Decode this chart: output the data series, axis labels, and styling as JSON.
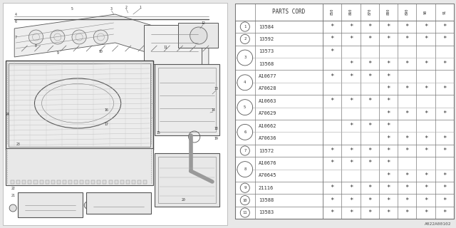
{
  "bg_color": "#e8e8e8",
  "diagram_bg": "#d8d8d8",
  "table_bg": "#ffffff",
  "header": "PARTS CORD",
  "col_headers": [
    "8\n5\n0",
    "8\n6\n0",
    "8\n7\n0",
    "8\n8\n0",
    "8\n9\n0",
    "9\n0",
    "9\n1"
  ],
  "rows": [
    {
      "num": 1,
      "parts": [
        {
          "code": "13584",
          "marks": [
            1,
            1,
            1,
            1,
            1,
            1,
            1
          ]
        }
      ]
    },
    {
      "num": 2,
      "parts": [
        {
          "code": "13592",
          "marks": [
            1,
            1,
            1,
            1,
            1,
            1,
            1
          ]
        }
      ]
    },
    {
      "num": 3,
      "parts": [
        {
          "code": "13573",
          "marks": [
            1,
            0,
            0,
            0,
            0,
            0,
            0
          ]
        },
        {
          "code": "13568",
          "marks": [
            0,
            1,
            1,
            1,
            1,
            1,
            1
          ]
        }
      ]
    },
    {
      "num": 4,
      "parts": [
        {
          "code": "A10677",
          "marks": [
            1,
            1,
            1,
            1,
            0,
            0,
            0
          ]
        },
        {
          "code": "A70628",
          "marks": [
            0,
            0,
            0,
            1,
            1,
            1,
            1
          ]
        }
      ]
    },
    {
      "num": 5,
      "parts": [
        {
          "code": "A10663",
          "marks": [
            1,
            1,
            1,
            1,
            0,
            0,
            0
          ]
        },
        {
          "code": "A70629",
          "marks": [
            0,
            0,
            0,
            1,
            1,
            1,
            1
          ]
        }
      ]
    },
    {
      "num": 6,
      "parts": [
        {
          "code": "A10662",
          "marks": [
            0,
            1,
            1,
            1,
            0,
            0,
            0
          ]
        },
        {
          "code": "A70636",
          "marks": [
            0,
            0,
            0,
            1,
            1,
            1,
            1
          ]
        }
      ]
    },
    {
      "num": 7,
      "parts": [
        {
          "code": "13572",
          "marks": [
            1,
            1,
            1,
            1,
            1,
            1,
            1
          ]
        }
      ]
    },
    {
      "num": 8,
      "parts": [
        {
          "code": "A10676",
          "marks": [
            1,
            1,
            1,
            1,
            0,
            0,
            0
          ]
        },
        {
          "code": "A70645",
          "marks": [
            0,
            0,
            0,
            1,
            1,
            1,
            1
          ]
        }
      ]
    },
    {
      "num": 9,
      "parts": [
        {
          "code": "21116",
          "marks": [
            1,
            1,
            1,
            1,
            1,
            1,
            1
          ]
        }
      ]
    },
    {
      "num": 10,
      "parts": [
        {
          "code": "13588",
          "marks": [
            1,
            1,
            1,
            1,
            1,
            1,
            1
          ]
        }
      ]
    },
    {
      "num": 11,
      "parts": [
        {
          "code": "13583",
          "marks": [
            1,
            1,
            1,
            1,
            1,
            1,
            1
          ]
        }
      ]
    }
  ],
  "footnote": "A022A00102",
  "text_color": "#333333",
  "star_color": "#333333",
  "line_color": "#888888"
}
